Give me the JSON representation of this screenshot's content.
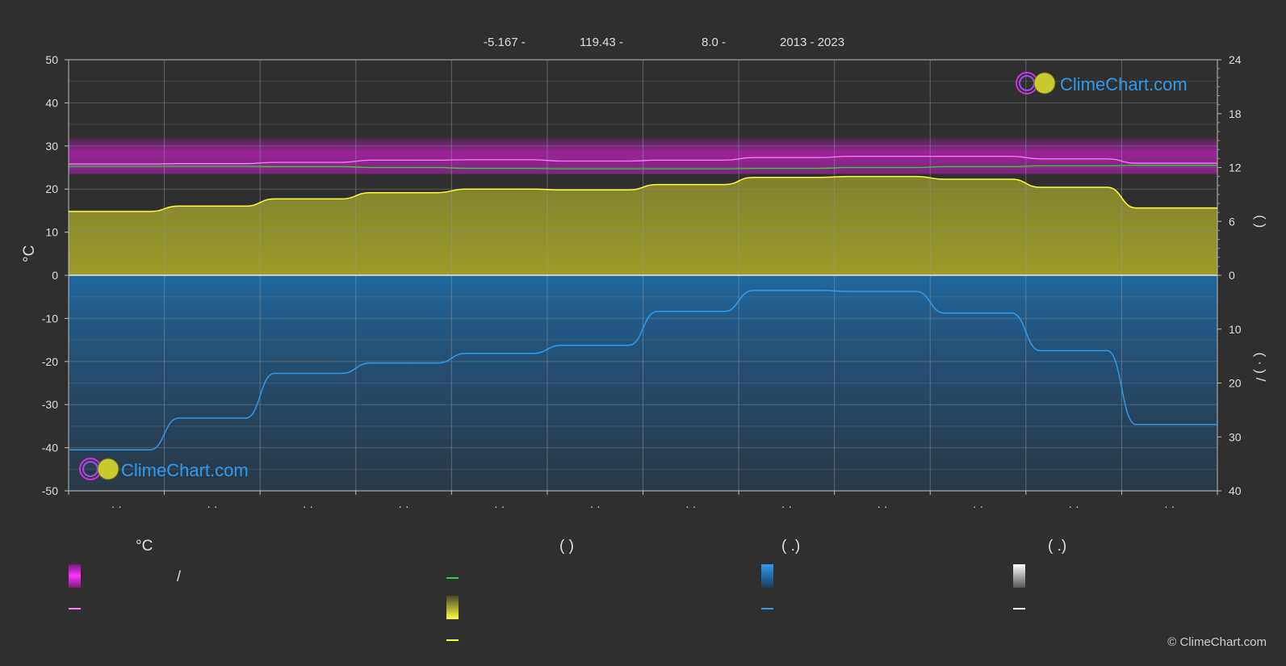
{
  "header": {
    "lat": "-5.167 -",
    "lon": "119.43 -",
    "elev": "8.0 -",
    "years": "2013 - 2023"
  },
  "brand": {
    "name": "ClimeChart.com",
    "copyright": "© ClimeChart.com"
  },
  "colors": {
    "background": "#2f2f2f",
    "temp_band": "#c81ec8",
    "sunshine_band": "#9a9a2a",
    "precip_band": "#1f6aa5",
    "max_line": "#ff7aff",
    "mean_line": "#32d232",
    "sunshine_line": "#ffff3c",
    "precip_line": "#2f9bef",
    "brand_text": "#2f9bef"
  },
  "legend": {
    "head_temp": "°C",
    "head_sun": "(          )",
    "head_precip": "(   .)",
    "head_snow": "(   .)",
    "temp_slash": "/"
  },
  "chart_data": {
    "type": "area",
    "title": "",
    "x_tick_labels": [
      "· ·",
      "· ·",
      "· ·",
      "· ·",
      "· ·",
      "· ·",
      "· ·",
      "· ·",
      "· ·",
      "· ·",
      "· ·",
      "· ·"
    ],
    "y_left": {
      "label": "°C",
      "range": [
        -50,
        50
      ],
      "ticks": [
        50,
        40,
        30,
        20,
        10,
        0,
        -10,
        -20,
        -30,
        -40,
        -50
      ]
    },
    "y_right_top": {
      "label": "(     )",
      "range": [
        0,
        24
      ],
      "ticks": [
        24,
        18,
        12,
        6,
        0
      ]
    },
    "y_right_bottom": {
      "label": "(  ·  )  /",
      "range": [
        0,
        40
      ],
      "ticks": [
        0,
        10,
        20,
        30,
        40
      ]
    },
    "months": [
      1,
      2,
      3,
      4,
      5,
      6,
      7,
      8,
      9,
      10,
      11,
      12
    ],
    "series": [
      {
        "key": "max_temp",
        "values": [
          25.8,
          25.9,
          26.2,
          26.7,
          26.8,
          26.5,
          26.7,
          27.3,
          27.6,
          27.6,
          27.0,
          26.0
        ]
      },
      {
        "key": "mean_temp",
        "values": [
          25.3,
          25.3,
          25.2,
          25.0,
          24.8,
          24.7,
          24.7,
          24.8,
          25.0,
          25.2,
          25.4,
          25.5
        ]
      },
      {
        "key": "sunshine_hours",
        "values": [
          7.1,
          7.7,
          8.5,
          9.2,
          9.6,
          9.5,
          10.1,
          10.9,
          11.0,
          10.7,
          9.8,
          7.5
        ]
      },
      {
        "key": "precipitation_mm",
        "values": [
          32.4,
          26.5,
          18.2,
          16.3,
          14.5,
          13.0,
          6.7,
          2.8,
          3.0,
          7.0,
          14.0,
          27.7
        ]
      }
    ],
    "grid": true
  }
}
